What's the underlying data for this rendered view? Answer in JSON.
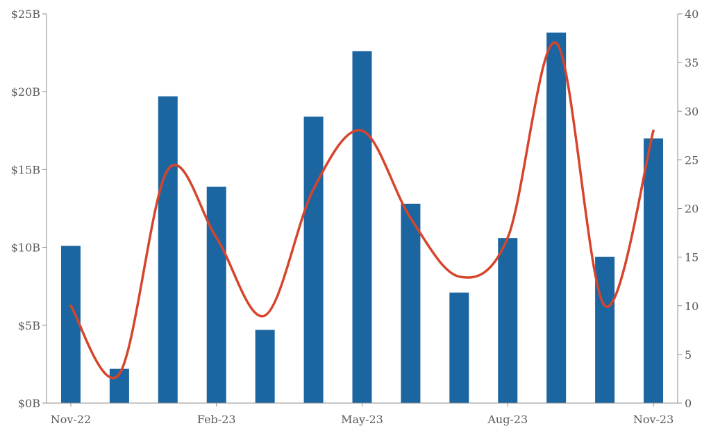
{
  "chart_data": {
    "type": "bar",
    "categories": [
      "Nov-22",
      "Dec-22",
      "Jan-23",
      "Feb-23",
      "Mar-23",
      "Apr-23",
      "May-23",
      "Jun-23",
      "Jul-23",
      "Aug-23",
      "Sep-23",
      "Oct-23",
      "Nov-23"
    ],
    "x_tick_labels": [
      "Nov-22",
      "Feb-23",
      "May-23",
      "Aug-23",
      "Nov-23"
    ],
    "series": [
      {
        "type": "bar",
        "axis": "left",
        "color": "#1b65a0",
        "values": [
          10.1,
          2.2,
          19.7,
          13.9,
          4.7,
          18.4,
          22.6,
          12.8,
          7.1,
          10.6,
          23.8,
          9.4,
          17.0
        ]
      },
      {
        "type": "line",
        "axis": "right",
        "color": "#d6452b",
        "smooth": true,
        "values": [
          10,
          3,
          24,
          17,
          9,
          22,
          28,
          19,
          13,
          17,
          37,
          10,
          28
        ]
      }
    ],
    "left_axis": {
      "min": 0,
      "max": 25,
      "step": 5,
      "tick_labels": [
        "$0B",
        "$5B",
        "$10B",
        "$15B",
        "$20B",
        "$25B"
      ]
    },
    "right_axis": {
      "min": 0,
      "max": 40,
      "step": 5,
      "tick_labels": [
        "0",
        "5",
        "10",
        "15",
        "20",
        "25",
        "30",
        "35",
        "40"
      ]
    },
    "grid": false,
    "legend": "none",
    "title": "",
    "xlabel": "",
    "ylabel": ""
  }
}
